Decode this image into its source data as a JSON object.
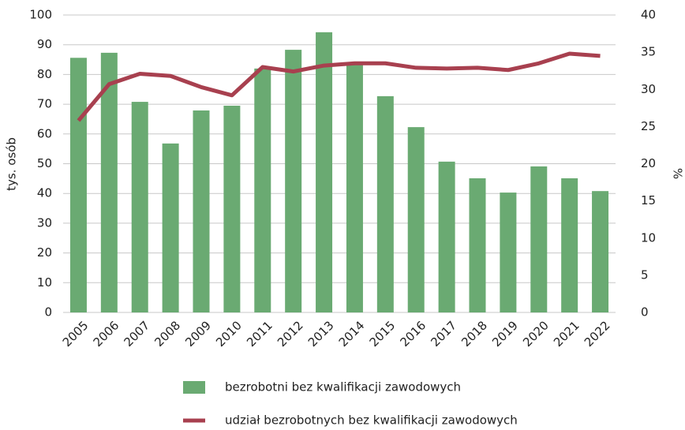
{
  "chart_data": {
    "type": "bar_line",
    "categories": [
      "2005",
      "2006",
      "2007",
      "2008",
      "2009",
      "2010",
      "2011",
      "2012",
      "2013",
      "2014",
      "2015",
      "2016",
      "2017",
      "2018",
      "2019",
      "2020",
      "2021",
      "2022"
    ],
    "series": [
      {
        "name": "bezrobotni bez kwalifikacji zawodowych",
        "type": "bar",
        "color": "#6aaa72",
        "values": [
          85.6,
          87.3,
          70.8,
          56.8,
          67.9,
          69.5,
          82.0,
          88.3,
          94.2,
          83.8,
          72.7,
          62.3,
          50.7,
          45.1,
          40.3,
          49.1,
          45.1,
          40.8
        ]
      },
      {
        "name": "udział bezrobotnych bez kwalifikacji zawodowych",
        "type": "line",
        "color": "#a8404f",
        "axis": "y2",
        "values": [
          25.8,
          30.7,
          32.1,
          31.8,
          30.3,
          29.2,
          33.0,
          32.4,
          33.2,
          33.5,
          33.5,
          32.9,
          32.8,
          32.9,
          32.6,
          33.5,
          34.8,
          34.5
        ]
      }
    ],
    "ylabel": "tys. osób",
    "y2label": "%",
    "ylim": [
      0,
      100
    ],
    "yticks": [
      0,
      10,
      20,
      30,
      40,
      50,
      60,
      70,
      80,
      90,
      100
    ],
    "y2lim": [
      0,
      40
    ],
    "y2ticks": [
      0,
      5,
      10,
      15,
      20,
      25,
      30,
      35,
      40
    ],
    "grid": true,
    "legend": "bottom"
  }
}
